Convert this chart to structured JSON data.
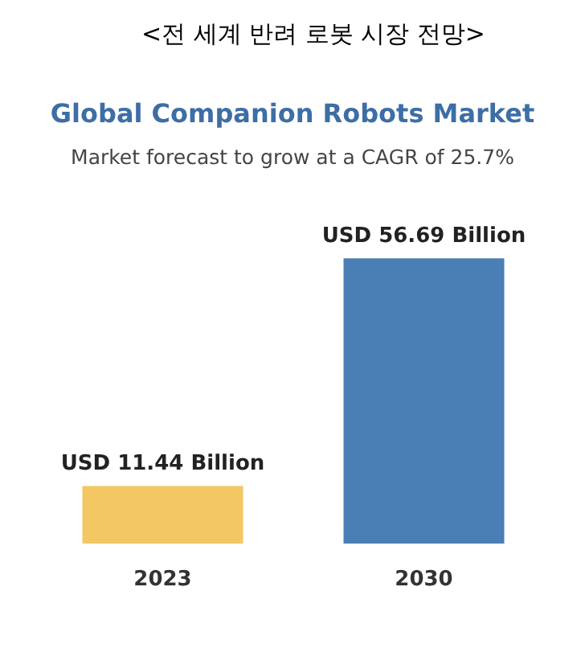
{
  "chart_data": {
    "type": "bar",
    "title": "<전 세계 반려 로봇 시장 전망>",
    "subtitle": "Global Companion Robots Market",
    "annotations": [
      "Market forecast to grow at a CAGR of 25.7%"
    ],
    "categories": [
      "2023",
      "2030"
    ],
    "tick_labels": "x",
    "values": [
      11.44,
      56.69
    ],
    "colors": [
      "#f3c763",
      "#4a7fb5"
    ],
    "value_labels": [
      "USD 11.44 Billion",
      "USD 56.69 Billion"
    ]
  }
}
